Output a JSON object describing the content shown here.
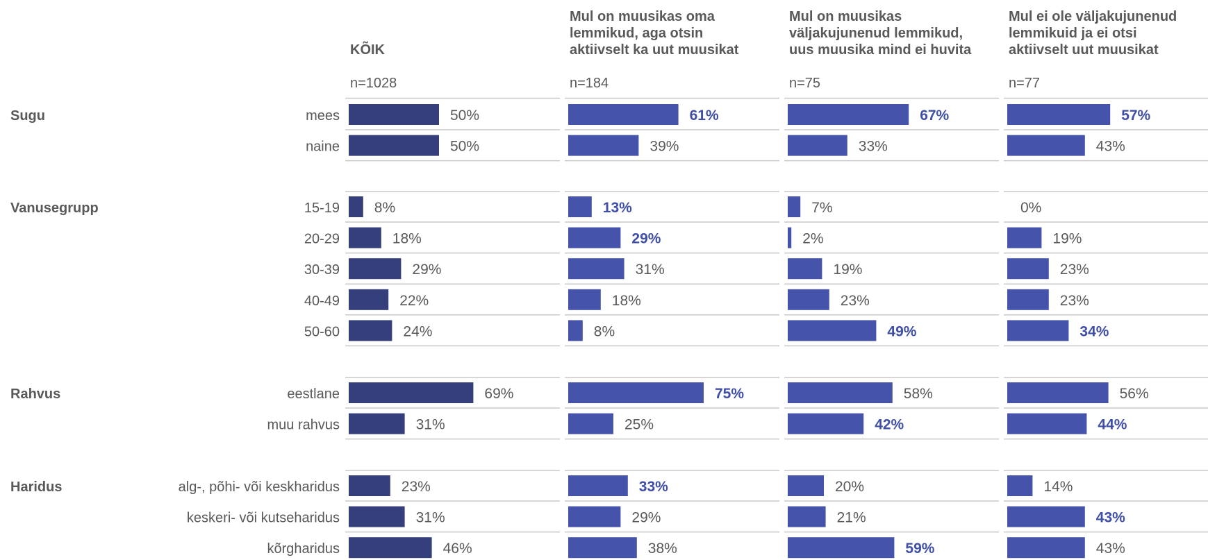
{
  "chart_data": {
    "type": "bar",
    "orientation": "horizontal",
    "unit": "%",
    "colors": {
      "total": "#353f7b",
      "segment": "#4553aa",
      "highlight_text": "#3f4fa8",
      "text": "#595959",
      "gridline": "#c8c8c8"
    },
    "columns": [
      {
        "title": [
          "",
          "",
          "KÕIK"
        ],
        "n": "n=1028",
        "total": true
      },
      {
        "title": [
          "Mul on muusikas oma",
          "lemmikud, aga otsin",
          "aktiivselt ka uut muusikat"
        ],
        "n": "n=184",
        "total": false
      },
      {
        "title": [
          "Mul on muusikas",
          "väljakujunenud lemmikud,",
          "uus muusika mind ei huvita"
        ],
        "n": "n=75",
        "total": false
      },
      {
        "title": [
          "Mul ei ole väljakujunenud",
          "lemmikuid ja ei otsi",
          "aktiivselt uut muusikat"
        ],
        "n": "n=77",
        "total": false
      }
    ],
    "groups": [
      {
        "name": "Sugu",
        "rows": [
          {
            "label": "mees",
            "values": [
              50,
              61,
              67,
              57
            ],
            "highlight": [
              false,
              true,
              true,
              true
            ]
          },
          {
            "label": "naine",
            "values": [
              50,
              39,
              33,
              43
            ],
            "highlight": [
              false,
              false,
              false,
              false
            ]
          }
        ]
      },
      {
        "name": "Vanusegrupp",
        "rows": [
          {
            "label": "15-19",
            "values": [
              8,
              13,
              7,
              0
            ],
            "highlight": [
              false,
              true,
              false,
              false
            ]
          },
          {
            "label": "20-29",
            "values": [
              18,
              29,
              2,
              19
            ],
            "highlight": [
              false,
              true,
              false,
              false
            ]
          },
          {
            "label": "30-39",
            "values": [
              29,
              31,
              19,
              23
            ],
            "highlight": [
              false,
              false,
              false,
              false
            ]
          },
          {
            "label": "40-49",
            "values": [
              22,
              18,
              23,
              23
            ],
            "highlight": [
              false,
              false,
              false,
              false
            ]
          },
          {
            "label": "50-60",
            "values": [
              24,
              8,
              49,
              34
            ],
            "highlight": [
              false,
              false,
              true,
              true
            ]
          }
        ]
      },
      {
        "name": "Rahvus",
        "rows": [
          {
            "label": "eestlane",
            "values": [
              69,
              75,
              58,
              56
            ],
            "highlight": [
              false,
              true,
              false,
              false
            ]
          },
          {
            "label": "muu rahvus",
            "values": [
              31,
              25,
              42,
              44
            ],
            "highlight": [
              false,
              false,
              true,
              true
            ]
          }
        ]
      },
      {
        "name": "Haridus",
        "rows": [
          {
            "label": "alg-, põhi- või keskharidus",
            "values": [
              23,
              33,
              20,
              14
            ],
            "highlight": [
              false,
              true,
              false,
              false
            ]
          },
          {
            "label": "keskeri- või kutseharidus",
            "values": [
              31,
              29,
              21,
              43
            ],
            "highlight": [
              false,
              false,
              false,
              true
            ]
          },
          {
            "label": "kõrgharidus",
            "values": [
              46,
              38,
              59,
              43
            ],
            "highlight": [
              false,
              false,
              true,
              false
            ]
          }
        ]
      }
    ]
  }
}
